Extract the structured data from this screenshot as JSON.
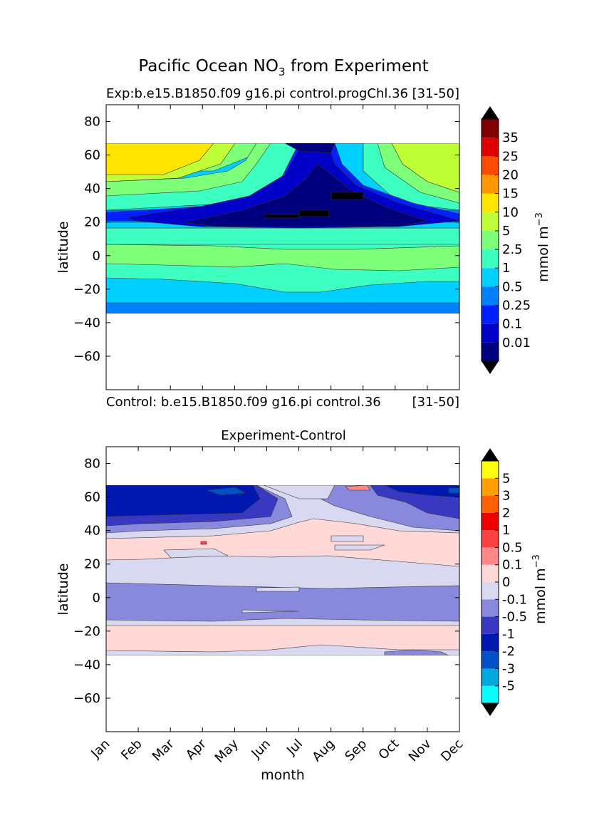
{
  "figure": {
    "title_prefix": "Pacific Ocean NO",
    "title_sub": "3",
    "title_suffix": " from Experiment"
  },
  "colors": {
    "top_levels": [
      "#00007f",
      "#0000c8",
      "#0020ff",
      "#0080ff",
      "#00d0ff",
      "#3dffc0",
      "#7dff7a",
      "#c0ff37",
      "#ffe500",
      "#ff9800",
      "#ff4a00",
      "#e00000",
      "#7f0000"
    ],
    "bottom_levels": [
      "#00ffff",
      "#00a8e0",
      "#0050c8",
      "#0018b0",
      "#3838c0",
      "#8888dc",
      "#d8d8f0",
      "#ffd8d8",
      "#ff8888",
      "#ff4040",
      "#ee0000",
      "#ff6000",
      "#ffa000",
      "#ffff10"
    ]
  },
  "chart_data": [
    {
      "type": "heatmap",
      "subtitle_left": "Exp:b.e15.B1850.f09 g16.pi control.progChl.36",
      "subtitle_right": "[31-50]",
      "subtitle_bottom_left": "Control: b.e15.B1850.f09 g16.pi control.36",
      "subtitle_bottom_right": "[31-50]",
      "xlabel": "",
      "ylabel": "latitude",
      "yticks": [
        "80",
        "60",
        "40",
        "20",
        "0",
        "−20",
        "−40",
        "−60"
      ],
      "ylim": [
        -80,
        90
      ],
      "xlim": [
        1,
        12
      ],
      "data_lat_range": [
        -34,
        67
      ],
      "colorbar_label": "mmol m",
      "colorbar_label_exp": "−3",
      "levels": [
        "0.01",
        "0.1",
        "0.25",
        "0.5",
        "1",
        "2.5",
        "5",
        "10",
        "15",
        "20",
        "25",
        "35"
      ],
      "colorbar_extend": "both"
    },
    {
      "type": "heatmap",
      "title": "Experiment-Control",
      "xlabel": "month",
      "ylabel": "latitude",
      "months": [
        "Jan",
        "Feb",
        "Mar",
        "Apr",
        "May",
        "Jun",
        "Jul",
        "Aug",
        "Sep",
        "Oct",
        "Nov",
        "Dec"
      ],
      "yticks": [
        "80",
        "60",
        "40",
        "20",
        "0",
        "−20",
        "−40",
        "−60"
      ],
      "ylim": [
        -80,
        90
      ],
      "xlim": [
        1,
        12
      ],
      "data_lat_range": [
        -34,
        67
      ],
      "colorbar_label": "mmol m",
      "colorbar_label_exp": "−3",
      "levels": [
        "-5",
        "-3",
        "-2",
        "-1",
        "-0.5",
        "-0.1",
        "0",
        "0.1",
        "0.5",
        "1",
        "2",
        "3",
        "5"
      ],
      "colorbar_extend": "both"
    }
  ]
}
